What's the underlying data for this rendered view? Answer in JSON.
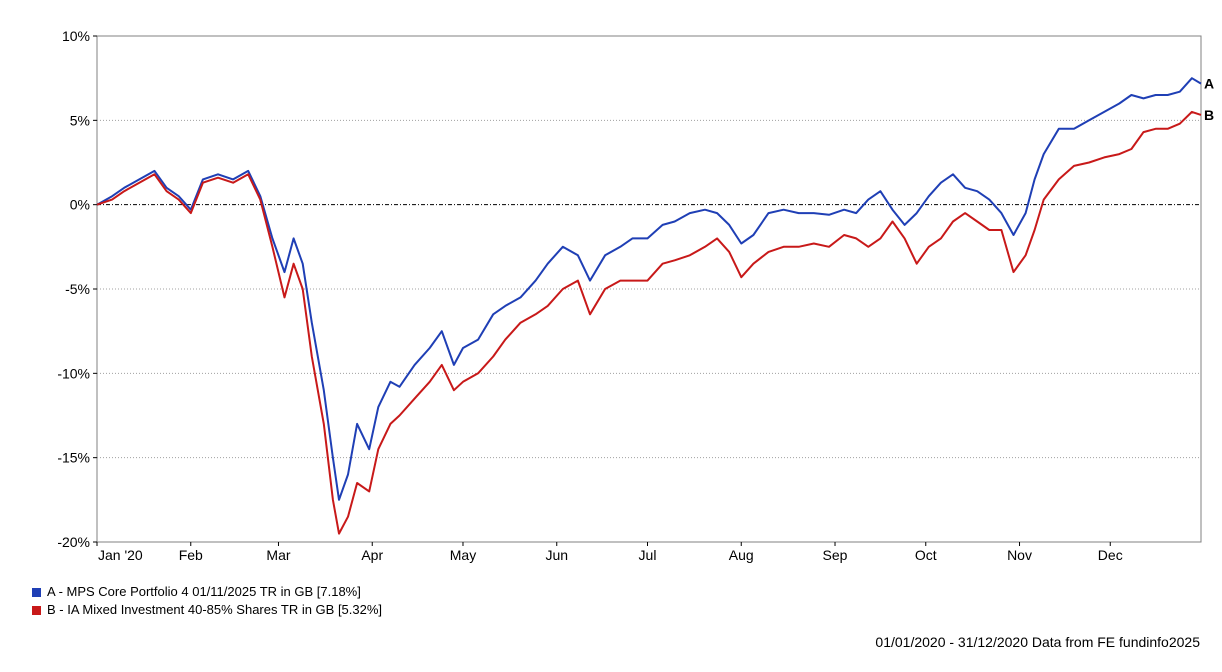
{
  "chart_data": {
    "type": "line",
    "title": "",
    "xlabel": "",
    "ylabel": "",
    "ylim": [
      -20,
      10
    ],
    "y_ticks": [
      10,
      5,
      0,
      -5,
      -10,
      -15,
      -20
    ],
    "y_tick_labels": [
      "10%",
      "5%",
      "0%",
      "-5%",
      "-10%",
      "-15%",
      "-20%"
    ],
    "x_tick_labels": [
      "Jan '20",
      "Feb",
      "Mar",
      "Apr",
      "May",
      "Jun",
      "Jul",
      "Aug",
      "Sep",
      "Oct",
      "Nov",
      "Dec"
    ],
    "x_tick_dates": [
      "2020-01-01",
      "2020-02-01",
      "2020-03-01",
      "2020-04-01",
      "2020-05-01",
      "2020-06-01",
      "2020-07-01",
      "2020-08-01",
      "2020-09-01",
      "2020-10-01",
      "2020-11-01",
      "2020-12-01"
    ],
    "xlim": [
      "2020-01-01",
      "2020-12-31"
    ],
    "grid": "horizontal dotted",
    "zero_line": "dash-dot",
    "legend_position": "bottom-left",
    "series": [
      {
        "name": "A - MPS Core Portfolio 4 01/11/2025 TR in GB [7.18%]",
        "end_label": "A",
        "color": "#1f3fb5",
        "x": [
          "2020-01-01",
          "2020-01-06",
          "2020-01-10",
          "2020-01-15",
          "2020-01-20",
          "2020-01-24",
          "2020-01-28",
          "2020-02-01",
          "2020-02-05",
          "2020-02-10",
          "2020-02-15",
          "2020-02-20",
          "2020-02-24",
          "2020-02-28",
          "2020-03-03",
          "2020-03-06",
          "2020-03-09",
          "2020-03-12",
          "2020-03-16",
          "2020-03-19",
          "2020-03-21",
          "2020-03-24",
          "2020-03-27",
          "2020-03-31",
          "2020-04-03",
          "2020-04-07",
          "2020-04-10",
          "2020-04-15",
          "2020-04-20",
          "2020-04-24",
          "2020-04-28",
          "2020-05-01",
          "2020-05-06",
          "2020-05-11",
          "2020-05-15",
          "2020-05-20",
          "2020-05-25",
          "2020-05-29",
          "2020-06-03",
          "2020-06-08",
          "2020-06-12",
          "2020-06-17",
          "2020-06-22",
          "2020-06-26",
          "2020-07-01",
          "2020-07-06",
          "2020-07-10",
          "2020-07-15",
          "2020-07-20",
          "2020-07-24",
          "2020-07-28",
          "2020-08-01",
          "2020-08-05",
          "2020-08-10",
          "2020-08-15",
          "2020-08-20",
          "2020-08-25",
          "2020-08-30",
          "2020-09-04",
          "2020-09-08",
          "2020-09-12",
          "2020-09-16",
          "2020-09-20",
          "2020-09-24",
          "2020-09-28",
          "2020-10-02",
          "2020-10-06",
          "2020-10-10",
          "2020-10-14",
          "2020-10-18",
          "2020-10-22",
          "2020-10-26",
          "2020-10-30",
          "2020-11-03",
          "2020-11-06",
          "2020-11-09",
          "2020-11-14",
          "2020-11-19",
          "2020-11-24",
          "2020-11-29",
          "2020-12-04",
          "2020-12-08",
          "2020-12-12",
          "2020-12-16",
          "2020-12-20",
          "2020-12-24",
          "2020-12-28",
          "2020-12-31"
        ],
        "values": [
          0,
          0.5,
          1.0,
          1.5,
          2.0,
          1.0,
          0.5,
          -0.3,
          1.5,
          1.8,
          1.5,
          2.0,
          0.5,
          -2.0,
          -4.0,
          -2.0,
          -3.5,
          -7.0,
          -11.0,
          -15.0,
          -17.5,
          -16.0,
          -13.0,
          -14.5,
          -12.0,
          -10.5,
          -10.8,
          -9.5,
          -8.5,
          -7.5,
          -9.5,
          -8.5,
          -8.0,
          -6.5,
          -6.0,
          -5.5,
          -4.5,
          -3.5,
          -2.5,
          -3.0,
          -4.5,
          -3.0,
          -2.5,
          -2.0,
          -2.0,
          -1.2,
          -1.0,
          -0.5,
          -0.3,
          -0.5,
          -1.2,
          -2.3,
          -1.8,
          -0.5,
          -0.3,
          -0.5,
          -0.5,
          -0.6,
          -0.3,
          -0.5,
          0.3,
          0.8,
          -0.3,
          -1.2,
          -0.5,
          0.5,
          1.3,
          1.8,
          1.0,
          0.8,
          0.3,
          -0.5,
          -1.8,
          -0.5,
          1.5,
          3.0,
          4.5,
          4.5,
          5.0,
          5.5,
          6.0,
          6.5,
          6.3,
          6.5,
          6.5,
          6.7,
          7.5,
          7.18
        ]
      },
      {
        "name": "B - IA Mixed Investment 40-85% Shares TR in GB [5.32%]",
        "end_label": "B",
        "color": "#c81919",
        "x": [
          "2020-01-01",
          "2020-01-06",
          "2020-01-10",
          "2020-01-15",
          "2020-01-20",
          "2020-01-24",
          "2020-01-28",
          "2020-02-01",
          "2020-02-05",
          "2020-02-10",
          "2020-02-15",
          "2020-02-20",
          "2020-02-24",
          "2020-02-28",
          "2020-03-03",
          "2020-03-06",
          "2020-03-09",
          "2020-03-12",
          "2020-03-16",
          "2020-03-19",
          "2020-03-21",
          "2020-03-24",
          "2020-03-27",
          "2020-03-31",
          "2020-04-03",
          "2020-04-07",
          "2020-04-10",
          "2020-04-15",
          "2020-04-20",
          "2020-04-24",
          "2020-04-28",
          "2020-05-01",
          "2020-05-06",
          "2020-05-11",
          "2020-05-15",
          "2020-05-20",
          "2020-05-25",
          "2020-05-29",
          "2020-06-03",
          "2020-06-08",
          "2020-06-12",
          "2020-06-17",
          "2020-06-22",
          "2020-06-26",
          "2020-07-01",
          "2020-07-06",
          "2020-07-10",
          "2020-07-15",
          "2020-07-20",
          "2020-07-24",
          "2020-07-28",
          "2020-08-01",
          "2020-08-05",
          "2020-08-10",
          "2020-08-15",
          "2020-08-20",
          "2020-08-25",
          "2020-08-30",
          "2020-09-04",
          "2020-09-08",
          "2020-09-12",
          "2020-09-16",
          "2020-09-20",
          "2020-09-24",
          "2020-09-28",
          "2020-10-02",
          "2020-10-06",
          "2020-10-10",
          "2020-10-14",
          "2020-10-18",
          "2020-10-22",
          "2020-10-26",
          "2020-10-30",
          "2020-11-03",
          "2020-11-06",
          "2020-11-09",
          "2020-11-14",
          "2020-11-19",
          "2020-11-24",
          "2020-11-29",
          "2020-12-04",
          "2020-12-08",
          "2020-12-12",
          "2020-12-16",
          "2020-12-20",
          "2020-12-24",
          "2020-12-28",
          "2020-12-31"
        ],
        "values": [
          0,
          0.3,
          0.8,
          1.3,
          1.8,
          0.8,
          0.3,
          -0.5,
          1.3,
          1.6,
          1.3,
          1.8,
          0.3,
          -2.5,
          -5.5,
          -3.5,
          -5.0,
          -9.0,
          -13.0,
          -17.5,
          -19.5,
          -18.5,
          -16.5,
          -17.0,
          -14.5,
          -13.0,
          -12.5,
          -11.5,
          -10.5,
          -9.5,
          -11.0,
          -10.5,
          -10.0,
          -9.0,
          -8.0,
          -7.0,
          -6.5,
          -6.0,
          -5.0,
          -4.5,
          -6.5,
          -5.0,
          -4.5,
          -4.5,
          -4.5,
          -3.5,
          -3.3,
          -3.0,
          -2.5,
          -2.0,
          -2.8,
          -4.3,
          -3.5,
          -2.8,
          -2.5,
          -2.5,
          -2.3,
          -2.5,
          -1.8,
          -2.0,
          -2.5,
          -2.0,
          -1.0,
          -2.0,
          -3.5,
          -2.5,
          -2.0,
          -1.0,
          -0.5,
          -1.0,
          -1.5,
          -1.5,
          -4.0,
          -3.0,
          -1.5,
          0.3,
          1.5,
          2.3,
          2.5,
          2.8,
          3.0,
          3.3,
          4.3,
          4.5,
          4.5,
          4.8,
          5.5,
          5.32
        ]
      }
    ]
  },
  "footer": "01/01/2020 - 31/12/2020 Data from FE fundinfo2025"
}
